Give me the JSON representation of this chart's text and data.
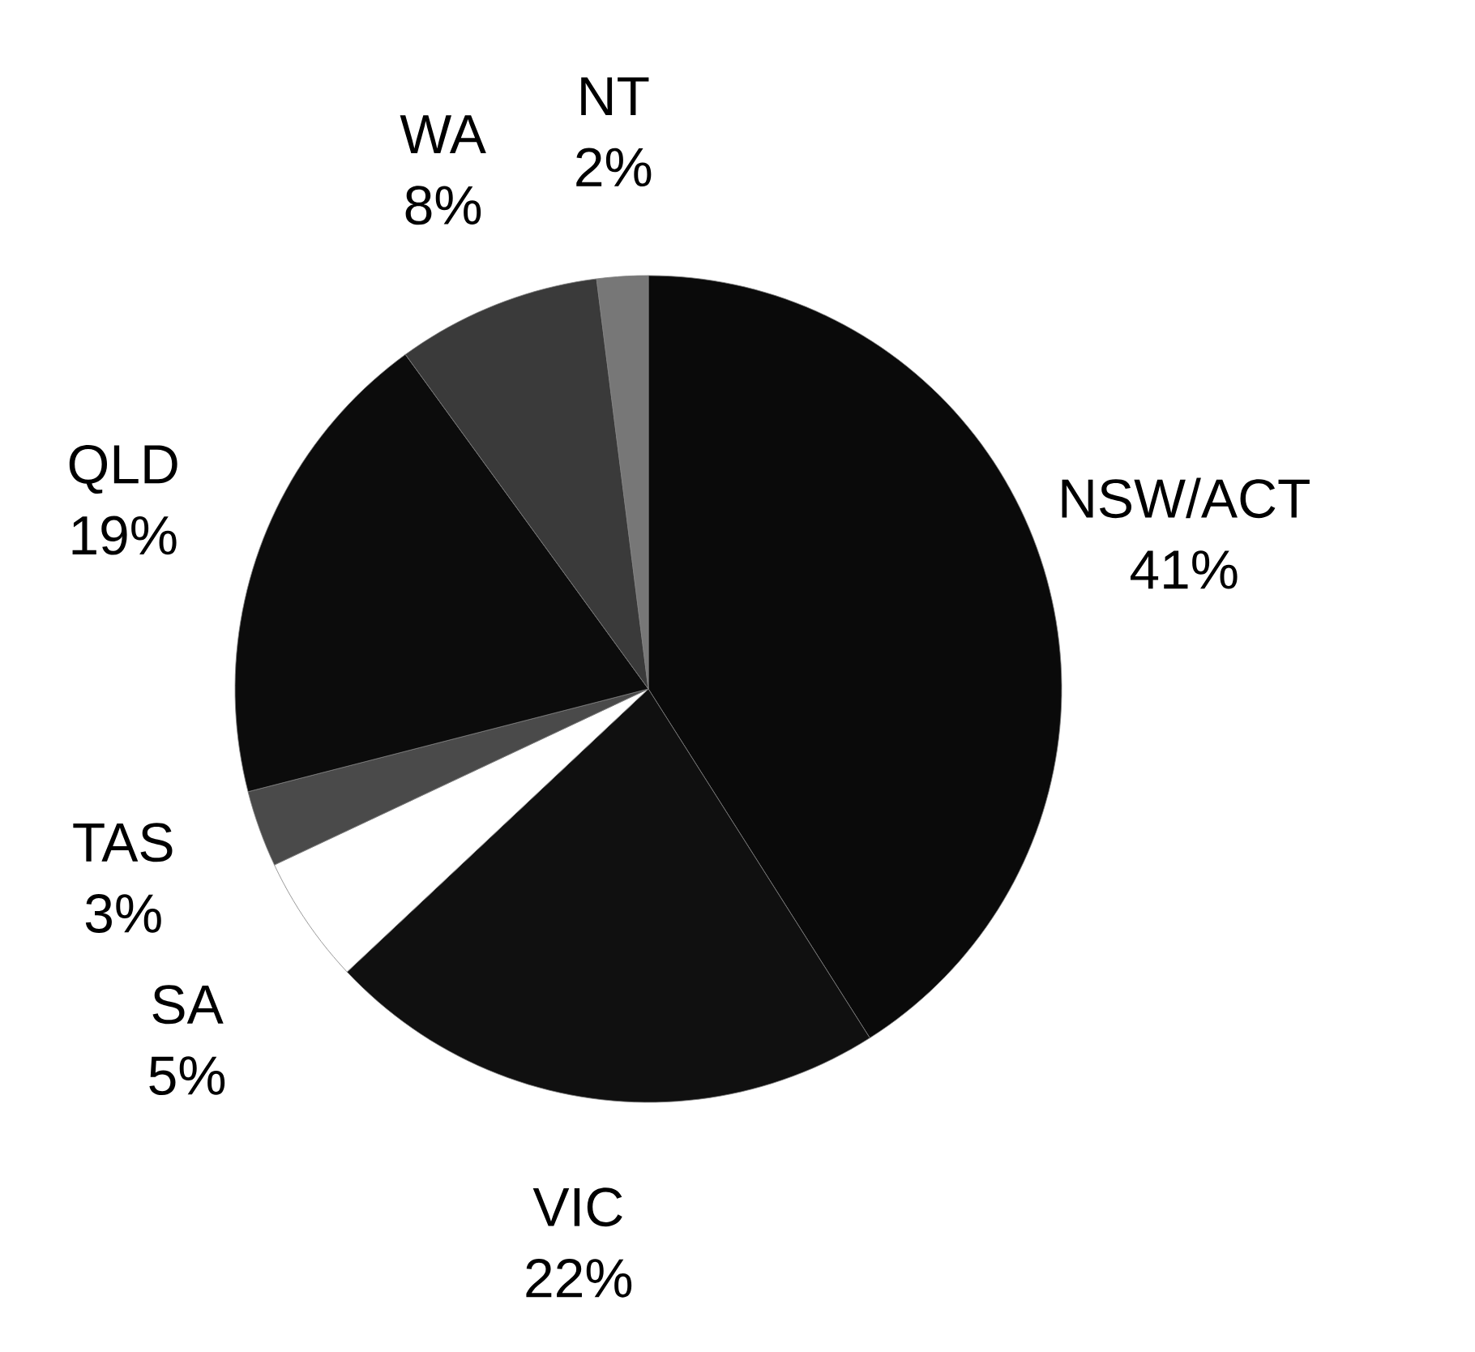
{
  "chart_data": {
    "type": "pie",
    "categories": [
      "NSW/ACT",
      "VIC",
      "SA",
      "TAS",
      "QLD",
      "WA",
      "NT"
    ],
    "values": [
      41,
      22,
      5,
      3,
      19,
      8,
      2
    ],
    "colors": [
      "#0a0a0a",
      "#101010",
      "#ffffff",
      "#4a4a4a",
      "#0c0c0c",
      "#3a3a3a",
      "#777777"
    ],
    "value_labels": [
      "41%",
      "22%",
      "5%",
      "3%",
      "19%",
      "8%",
      "2%"
    ]
  }
}
